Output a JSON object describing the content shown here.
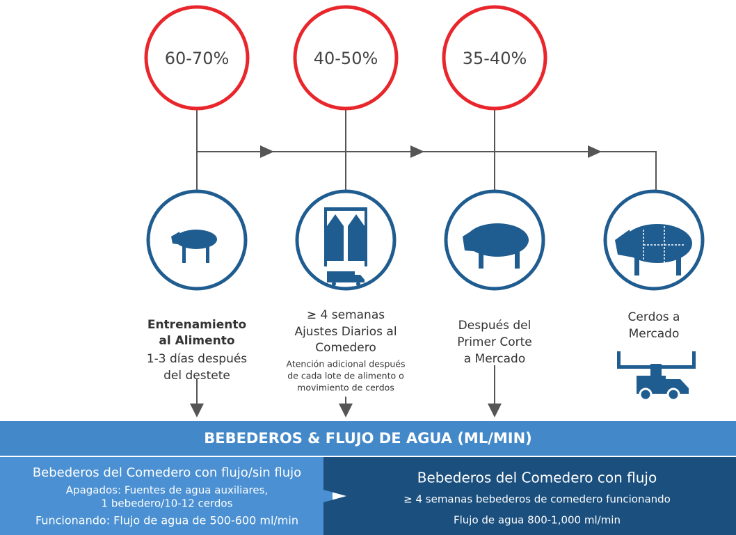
{
  "stages": [
    {
      "percent": "60-70%",
      "bold_lines": [
        "Entrenamiento",
        "al Alimento"
      ],
      "lines": [
        "1-3 días después",
        "del destete"
      ]
    },
    {
      "percent": "40-50%",
      "lines": [
        "≥ 4 semanas",
        "Ajustes Diarios al",
        "Comedero"
      ],
      "small_lines": [
        "Atención adicional después",
        "de cada lote de alimento o",
        "movimiento de cerdos"
      ]
    },
    {
      "percent": "35-40%",
      "lines": [
        "Después del",
        "Primer Corte",
        "a Mercado"
      ]
    },
    {
      "lines": [
        "Cerdos a",
        "Mercado"
      ]
    }
  ],
  "banner": {
    "title": "BEBEDEROS & FLUJO DE AGUA (ML/MIN)"
  },
  "left_panel": {
    "title": "Bebederos del Comedero con flujo/sin flujo",
    "lines": [
      "Apagados: Fuentes de agua auxiliares,",
      "1 bebedero/10-12 cerdos",
      "Funcionando: Flujo de agua de 500-600 ml/min"
    ]
  },
  "right_panel": {
    "title": "Bebederos del Comedero con flujo",
    "lines": [
      "≥ 4 semanas bebederos de comedero funcionando",
      "Flujo de agua 800-1,000 ml/min"
    ]
  }
}
